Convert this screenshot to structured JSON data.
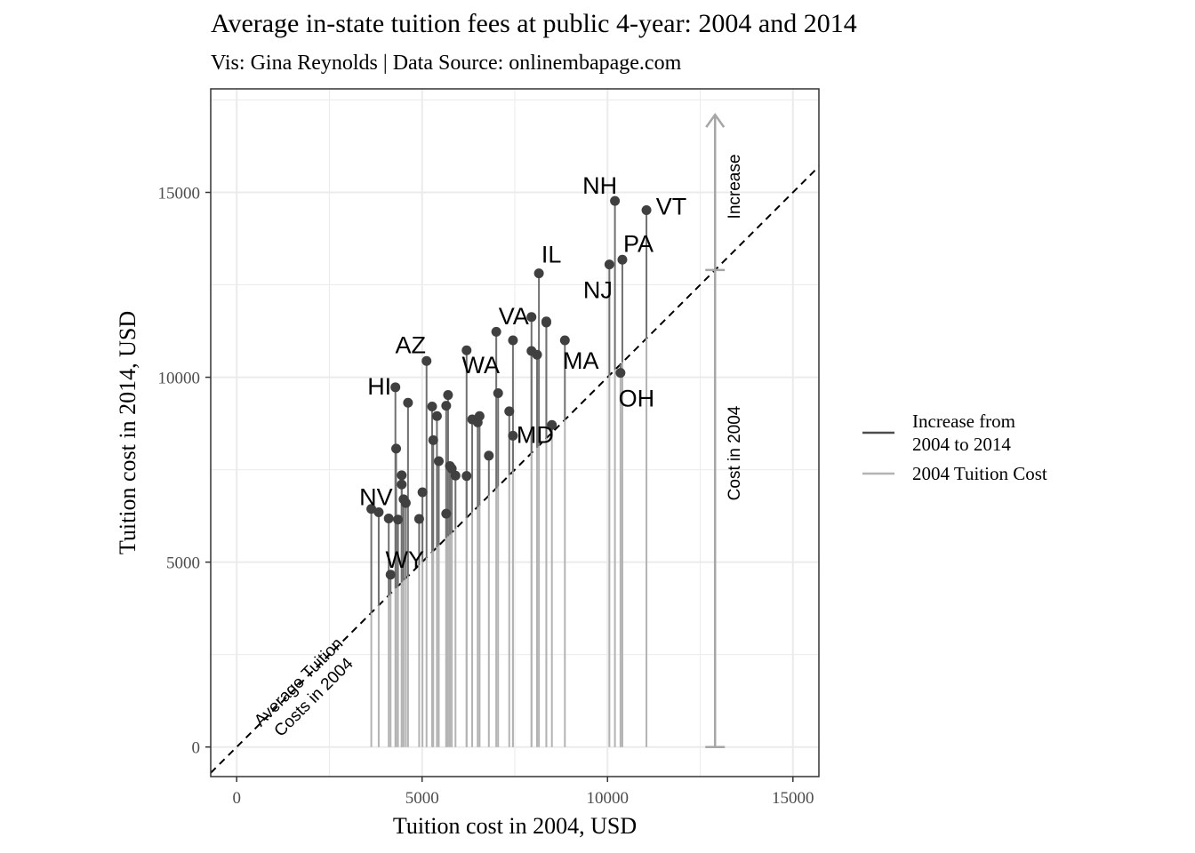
{
  "chart_data": {
    "type": "scatter",
    "title": "Average in-state tuition fees at public 4-year: 2004 and 2014",
    "subtitle": "Vis: Gina Reynolds | Data Source: onlinembapage.com",
    "xlabel": "Tuition cost in 2004, USD",
    "ylabel": "Tuition cost in 2014, USD",
    "xlim": [
      -700,
      15700
    ],
    "ylim": [
      -800,
      17800
    ],
    "xticks": [
      0,
      5000,
      10000,
      15000
    ],
    "yticks": [
      0,
      5000,
      10000,
      15000
    ],
    "grid": true,
    "legend": {
      "position": "right",
      "entries": [
        {
          "label_lines": [
            "Increase from",
            "2004 to 2014"
          ],
          "color": "#4d4d4d"
        },
        {
          "label_lines": [
            "2004 Tuition Cost"
          ],
          "color": "#b3b3b3"
        }
      ]
    },
    "reference_line": {
      "type": "y=x",
      "label_lines": [
        "Average Tuition",
        "Costs in 2004"
      ]
    },
    "annotation_arrow": {
      "x": 12900,
      "y_base": 12900,
      "y_top": 17100,
      "increase_label": "Increase",
      "base_label": "Cost in 2004",
      "color": "#a6a6a6"
    },
    "colors": {
      "point": "#404040",
      "increase_segment": "#707070",
      "base_segment": "#b3b3b3"
    },
    "points": [
      {
        "x": 3630,
        "y": 6440
      },
      {
        "x": 3830,
        "y": 6350,
        "label": "NV"
      },
      {
        "x": 4100,
        "y": 6180
      },
      {
        "x": 4150,
        "y": 4660,
        "label": "WY"
      },
      {
        "x": 4280,
        "y": 9730,
        "label": "HI"
      },
      {
        "x": 4300,
        "y": 8070
      },
      {
        "x": 4350,
        "y": 6150
      },
      {
        "x": 4450,
        "y": 7100
      },
      {
        "x": 4450,
        "y": 7350
      },
      {
        "x": 4500,
        "y": 6700
      },
      {
        "x": 4560,
        "y": 6600
      },
      {
        "x": 4620,
        "y": 9310
      },
      {
        "x": 4920,
        "y": 6170
      },
      {
        "x": 5010,
        "y": 6890
      },
      {
        "x": 5120,
        "y": 10440,
        "label": "AZ"
      },
      {
        "x": 5270,
        "y": 9210
      },
      {
        "x": 5300,
        "y": 8300
      },
      {
        "x": 5400,
        "y": 8950
      },
      {
        "x": 5450,
        "y": 7730
      },
      {
        "x": 5650,
        "y": 6310
      },
      {
        "x": 5650,
        "y": 9230
      },
      {
        "x": 5700,
        "y": 9520
      },
      {
        "x": 5750,
        "y": 7600
      },
      {
        "x": 5800,
        "y": 7530
      },
      {
        "x": 5900,
        "y": 7340
      },
      {
        "x": 6200,
        "y": 10730,
        "label": "WA"
      },
      {
        "x": 6200,
        "y": 7330
      },
      {
        "x": 6350,
        "y": 8860
      },
      {
        "x": 6500,
        "y": 8780
      },
      {
        "x": 6550,
        "y": 8950
      },
      {
        "x": 6800,
        "y": 7880
      },
      {
        "x": 7000,
        "y": 11230
      },
      {
        "x": 7050,
        "y": 9570
      },
      {
        "x": 7350,
        "y": 9080
      },
      {
        "x": 7450,
        "y": 11000
      },
      {
        "x": 7450,
        "y": 8420,
        "label": "MD"
      },
      {
        "x": 7950,
        "y": 11630,
        "label": "VA"
      },
      {
        "x": 7950,
        "y": 10710
      },
      {
        "x": 8100,
        "y": 10610
      },
      {
        "x": 8150,
        "y": 12810,
        "label": "IL"
      },
      {
        "x": 8350,
        "y": 11510
      },
      {
        "x": 8350,
        "y": 11480
      },
      {
        "x": 8500,
        "y": 8710
      },
      {
        "x": 8850,
        "y": 11000,
        "label": "MA"
      },
      {
        "x": 10050,
        "y": 13050,
        "label": "NJ"
      },
      {
        "x": 10200,
        "y": 14770,
        "label": "NH"
      },
      {
        "x": 10350,
        "y": 10120,
        "label": "OH"
      },
      {
        "x": 10400,
        "y": 13180,
        "label": "PA"
      },
      {
        "x": 11050,
        "y": 14520,
        "label": "VT"
      }
    ]
  }
}
